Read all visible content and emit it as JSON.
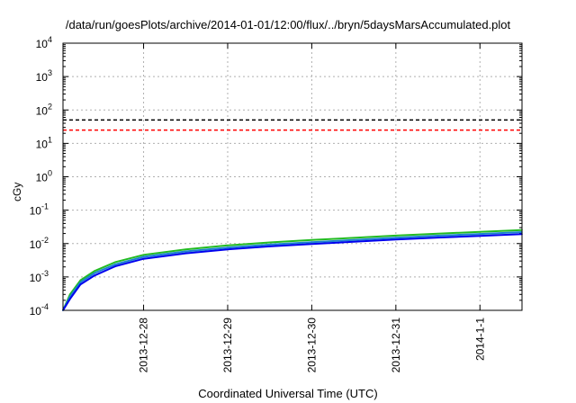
{
  "chart_data": {
    "type": "line",
    "title": "/data/run/goesPlots/archive/2014-01-01/12:00/flux/../bryn/5daysMarsAccumulated.plot",
    "xlabel": "Coordinated Universal Time (UTC)",
    "ylabel": "cGy",
    "yscale": "log",
    "ylim": [
      0.0001,
      10000
    ],
    "xlim": [
      "2013-12-27T01:00",
      "2014-01-01T12:00"
    ],
    "grid": true,
    "x_ticks": [
      "2013-12-28",
      "2013-12-29",
      "2013-12-30",
      "2013-12-31",
      "2014-1-1"
    ],
    "y_ticks": [
      {
        "base": "10",
        "exp": "-4"
      },
      {
        "base": "10",
        "exp": "-3"
      },
      {
        "base": "10",
        "exp": "-2"
      },
      {
        "base": "10",
        "exp": "-1"
      },
      {
        "base": "10",
        "exp": "0"
      },
      {
        "base": "10",
        "exp": "1"
      },
      {
        "base": "10",
        "exp": "2"
      },
      {
        "base": "10",
        "exp": "3"
      },
      {
        "base": "10",
        "exp": "4"
      }
    ],
    "reference_lines": [
      {
        "y": 50,
        "color": "#000000",
        "style": "dashed"
      },
      {
        "y": 25,
        "color": "#ff0000",
        "style": "dashed"
      }
    ],
    "series": [
      {
        "color": "#22bb22",
        "x": [
          "2013-12-27T01:00",
          "2013-12-27T03:00",
          "2013-12-27T06:00",
          "2013-12-27T10:00",
          "2013-12-27T16:00",
          "2013-12-28T00:00",
          "2013-12-28T12:00",
          "2013-12-29T00:00",
          "2013-12-29T12:00",
          "2013-12-30T00:00",
          "2013-12-30T12:00",
          "2013-12-31T00:00",
          "2013-12-31T12:00",
          "2014-01-01T00:00",
          "2014-01-01T12:00"
        ],
        "y": [
          0.0001,
          0.0003,
          0.0008,
          0.0015,
          0.0028,
          0.0046,
          0.0067,
          0.0088,
          0.0108,
          0.0128,
          0.0148,
          0.0173,
          0.0198,
          0.0223,
          0.0255
        ]
      },
      {
        "color": "#1a7fd0",
        "x": [
          "2013-12-27T01:00",
          "2013-12-27T03:00",
          "2013-12-27T06:00",
          "2013-12-27T10:00",
          "2013-12-27T16:00",
          "2013-12-28T00:00",
          "2013-12-28T12:00",
          "2013-12-29T00:00",
          "2013-12-29T12:00",
          "2013-12-30T00:00",
          "2013-12-30T12:00",
          "2013-12-31T00:00",
          "2013-12-31T12:00",
          "2014-01-01T00:00",
          "2014-01-01T12:00"
        ],
        "y": [
          0.0001,
          0.00026,
          0.0007,
          0.0013,
          0.0024,
          0.004,
          0.0058,
          0.0076,
          0.0093,
          0.011,
          0.0128,
          0.015,
          0.0172,
          0.0193,
          0.022
        ]
      },
      {
        "color": "#0000ee",
        "x": [
          "2013-12-27T01:00",
          "2013-12-27T03:00",
          "2013-12-27T06:00",
          "2013-12-27T10:00",
          "2013-12-27T16:00",
          "2013-12-28T00:00",
          "2013-12-28T12:00",
          "2013-12-29T00:00",
          "2013-12-29T12:00",
          "2013-12-30T00:00",
          "2013-12-30T12:00",
          "2013-12-31T00:00",
          "2013-12-31T12:00",
          "2014-01-01T00:00",
          "2014-01-01T12:00"
        ],
        "y": [
          0.0001,
          0.00022,
          0.0006,
          0.0011,
          0.0021,
          0.0035,
          0.0051,
          0.0067,
          0.0082,
          0.0097,
          0.0113,
          0.0132,
          0.0151,
          0.017,
          0.0192
        ]
      }
    ]
  }
}
